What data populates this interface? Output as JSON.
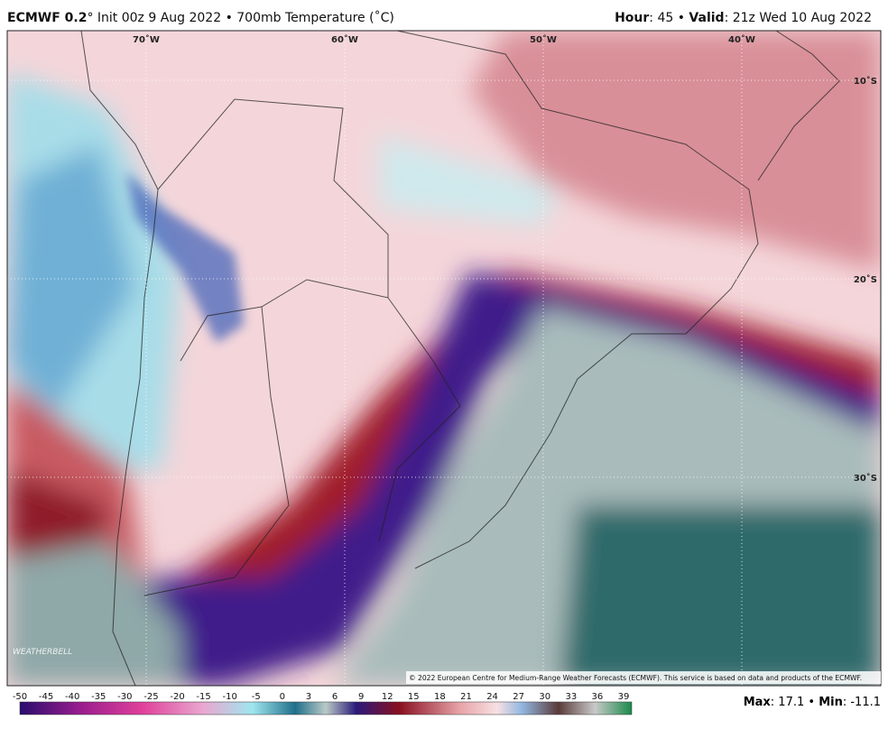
{
  "header": {
    "model": "ECMWF 0.2",
    "run": "° Init 00z 9 Aug 2022 • 700mb Temperature (˚C)",
    "hour_label": "Hour",
    "hour_value": ": 45 • ",
    "valid_label": "Valid",
    "valid_value": ": 21z Wed 10 Aug 2022"
  },
  "map": {
    "longitudes": [
      "70˚W",
      "60˚W",
      "50˚W",
      "40˚W"
    ],
    "latitudes": [
      "10˚S",
      "20˚S",
      "30˚S"
    ],
    "logo": "WEATHERBELL",
    "copyright": "© 2022 European Centre for Medium-Range Weather Forecasts (ECMWF). This service is based on data and products of the ECMWF."
  },
  "colorbar": {
    "ticks": [
      -50,
      -45,
      -40,
      -35,
      -30,
      -25,
      -20,
      -15,
      -10,
      -5,
      0,
      3,
      6,
      9,
      12,
      15,
      18,
      21,
      24,
      27,
      30,
      33,
      36,
      39
    ]
  },
  "footer": {
    "max_label": "Max",
    "max_value": ": 17.1 • ",
    "min_label": "Min",
    "min_value": ": -11.1"
  }
}
